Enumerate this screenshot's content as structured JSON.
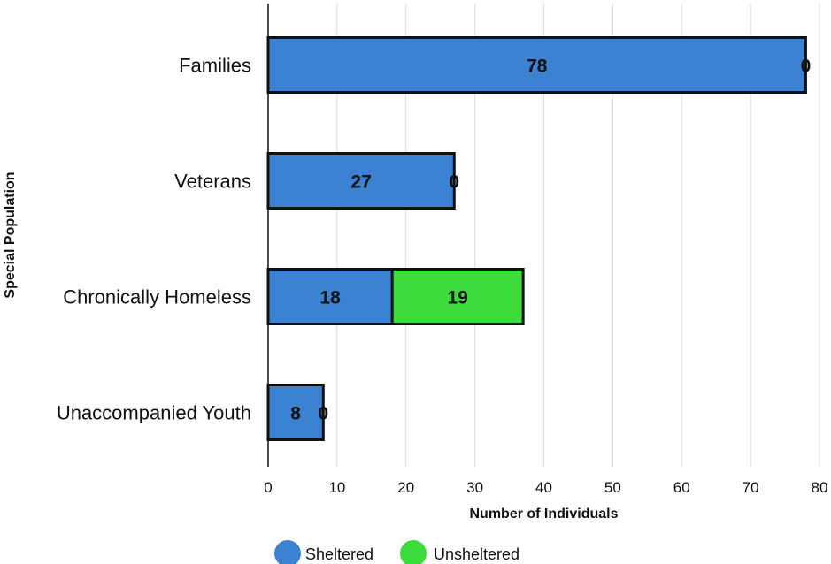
{
  "chart_data": {
    "type": "bar",
    "orientation": "horizontal",
    "stacked": true,
    "categories": [
      "Families",
      "Veterans",
      "Chronically Homeless",
      "Unaccompanied Youth"
    ],
    "series": [
      {
        "name": "Sheltered",
        "values": [
          78,
          27,
          18,
          8
        ],
        "color": "#3b82d3"
      },
      {
        "name": "Unsheltered",
        "values": [
          0,
          0,
          19,
          0
        ],
        "color": "#3cdc3c"
      }
    ],
    "xlabel": "Number of Individuals",
    "ylabel": "Special Population",
    "xlim": [
      0,
      80
    ],
    "xticks": [
      0,
      10,
      20,
      30,
      40,
      50,
      60,
      70,
      80
    ],
    "grid": "vertical",
    "legend_position": "bottom"
  }
}
